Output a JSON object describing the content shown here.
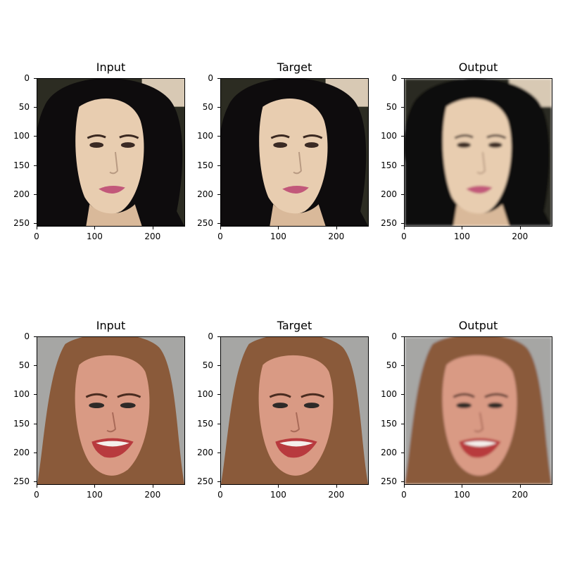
{
  "figure": {
    "rows": [
      {
        "panels": [
          {
            "title": "Input",
            "variant": "a",
            "sharp": true
          },
          {
            "title": "Target",
            "variant": "a",
            "sharp": true
          },
          {
            "title": "Output",
            "variant": "a",
            "sharp": false
          }
        ]
      },
      {
        "panels": [
          {
            "title": "Input",
            "variant": "b",
            "sharp": true
          },
          {
            "title": "Target",
            "variant": "b",
            "sharp": true
          },
          {
            "title": "Output",
            "variant": "b",
            "sharp": false
          }
        ]
      }
    ],
    "y_ticks": [
      "0",
      "50",
      "100",
      "150",
      "200",
      "250"
    ],
    "x_ticks": [
      "0",
      "100",
      "200"
    ],
    "image_size": 256,
    "colors": {
      "dark_hair": "#0e0c0d",
      "skin_a": "#e8cdb0",
      "lips_a": "#c2587a",
      "bg_a": "#2c2c22",
      "light_hair": "#8a5a3a",
      "skin_b": "#d99a84",
      "lips_b": "#b83a3e",
      "bg_b": "#a6a6a4"
    }
  }
}
